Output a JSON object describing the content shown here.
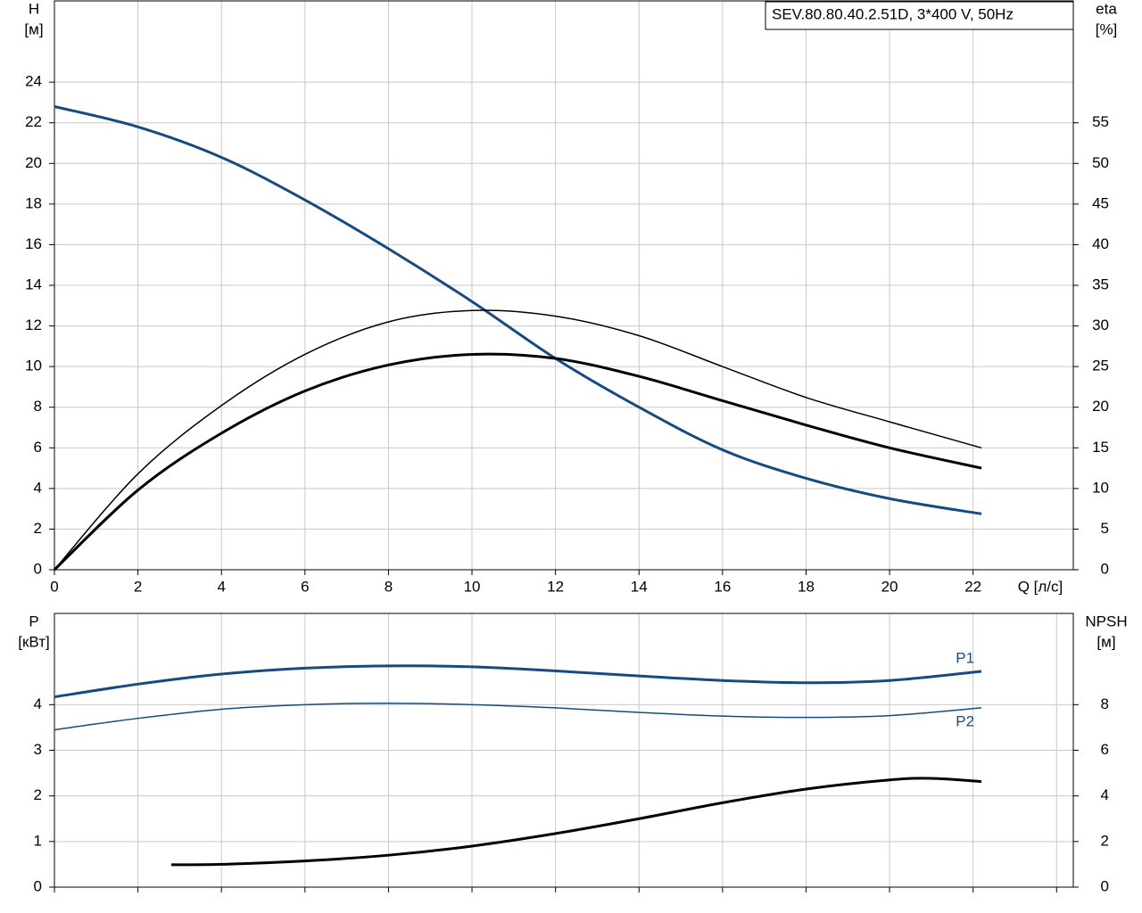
{
  "chart_data": [
    {
      "type": "line",
      "title": "SEV.80.80.40.2.51D, 3*400 V, 50Hz",
      "y_label": "H",
      "y_unit": "[м]",
      "y2_label": "eta",
      "y2_unit": "[%]",
      "x_label": "Q [л/с]",
      "xlim": [
        0,
        24.4
      ],
      "xticks": [
        0,
        2,
        4,
        6,
        8,
        10,
        12,
        14,
        16,
        18,
        20,
        22
      ],
      "ylim": [
        0,
        28
      ],
      "yticks": [
        0,
        2,
        4,
        6,
        8,
        10,
        12,
        14,
        16,
        18,
        20,
        22,
        24
      ],
      "y2lim": [
        0,
        70
      ],
      "y2ticks": [
        0,
        5,
        10,
        15,
        20,
        25,
        30,
        35,
        40,
        45,
        50,
        55
      ],
      "grid": true,
      "series": [
        {
          "color": "#164b82",
          "line_width": 3,
          "x": [
            0,
            2,
            4,
            6,
            8,
            10,
            12,
            14,
            16,
            18,
            20,
            22.2
          ],
          "values": [
            22.8,
            21.8,
            20.3,
            18.2,
            15.8,
            13.2,
            10.4,
            8.0,
            5.9,
            4.5,
            3.5,
            2.75
          ]
        },
        {
          "color": "#000000",
          "line_width": 1.5,
          "axis": "y2",
          "x": [
            0,
            2,
            4,
            6,
            8,
            10,
            12,
            14,
            16,
            18,
            20,
            22.2
          ],
          "values": [
            0,
            11.8,
            20.2,
            26.5,
            30.5,
            31.9,
            31.2,
            28.8,
            25,
            21.2,
            18.2,
            15
          ]
        },
        {
          "color": "#000000",
          "line_width": 3,
          "axis": "y2",
          "x": [
            0,
            2,
            4,
            6,
            8,
            10,
            12,
            14,
            16,
            18,
            20,
            22.2
          ],
          "values": [
            0,
            9.8,
            16.8,
            22,
            25.2,
            26.5,
            26,
            23.8,
            20.8,
            17.8,
            15,
            12.5
          ]
        }
      ]
    },
    {
      "type": "line",
      "y_label": "P",
      "y_unit": "[кВт]",
      "y2_label": "NPSH",
      "y2_unit": "[м]",
      "xlim": [
        0,
        24.4
      ],
      "xgrid": [
        0,
        2,
        4,
        6,
        8,
        10,
        12,
        14,
        16,
        18,
        20,
        22,
        24
      ],
      "ylim": [
        0,
        6
      ],
      "yticks": [
        0,
        1,
        2,
        3,
        4
      ],
      "y2lim": [
        0,
        12
      ],
      "y2ticks": [
        0,
        2,
        4,
        6,
        8
      ],
      "grid": true,
      "series": [
        {
          "name": "P1",
          "color": "#164b82",
          "line_width": 3,
          "x": [
            0,
            2,
            4,
            6,
            8,
            10,
            12,
            14,
            16,
            18,
            20,
            22.2
          ],
          "values": [
            4.17,
            4.45,
            4.67,
            4.8,
            4.85,
            4.83,
            4.74,
            4.63,
            4.53,
            4.48,
            4.53,
            4.73
          ]
        },
        {
          "name": "P2",
          "color": "#164b82",
          "line_width": 1.5,
          "x": [
            0,
            2,
            4,
            6,
            8,
            10,
            12,
            14,
            16,
            18,
            20,
            22.2
          ],
          "values": [
            3.45,
            3.7,
            3.9,
            4.0,
            4.03,
            4.0,
            3.93,
            3.83,
            3.75,
            3.72,
            3.76,
            3.93
          ]
        },
        {
          "color": "#000000",
          "line_width": 3,
          "axis": "y2",
          "x": [
            2.8,
            4,
            6,
            8,
            10,
            12,
            14,
            16,
            18,
            20,
            21,
            22.2
          ],
          "values": [
            0.98,
            1.0,
            1.15,
            1.4,
            1.8,
            2.35,
            3.0,
            3.7,
            4.3,
            4.7,
            4.77,
            4.63
          ]
        }
      ]
    }
  ]
}
